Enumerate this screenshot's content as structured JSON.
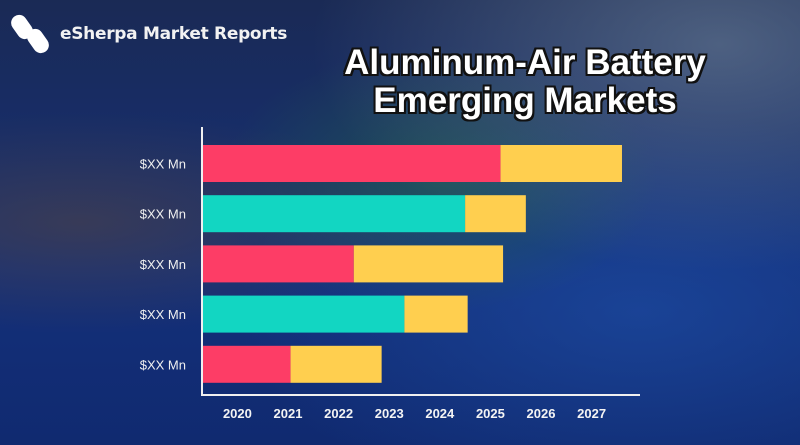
{
  "brand": {
    "name": "eSherpa Market Reports",
    "icon": "esherpa-logo-icon"
  },
  "title": {
    "line1": "Aluminum-Air Battery",
    "line2": "Emerging Markets"
  },
  "chart_data": {
    "type": "bar",
    "orientation": "horizontal-stacked",
    "title": "Aluminum-Air Battery Emerging Markets",
    "xlabel": "",
    "ylabel": "",
    "x_ticks": [
      "2020",
      "2021",
      "2022",
      "2023",
      "2024",
      "2025",
      "2026",
      "2027"
    ],
    "xlim": [
      2019.3,
      2028
    ],
    "categories": [
      "$XX Mn",
      "$XX Mn",
      "$XX Mn",
      "$XX Mn",
      "$XX Mn"
    ],
    "bars": [
      {
        "label": "$XX Mn",
        "start": 2019.3,
        "mid": 2025.2,
        "end": 2027.6,
        "base_color": "#fd3d66"
      },
      {
        "label": "$XX Mn",
        "start": 2019.3,
        "mid": 2024.5,
        "end": 2025.7,
        "base_color": "#12d6c2"
      },
      {
        "label": "$XX Mn",
        "start": 2019.3,
        "mid": 2022.3,
        "end": 2025.25,
        "base_color": "#fd3d66"
      },
      {
        "label": "$XX Mn",
        "start": 2019.3,
        "mid": 2023.3,
        "end": 2024.55,
        "base_color": "#12d6c2"
      },
      {
        "label": "$XX Mn",
        "start": 2019.3,
        "mid": 2021.05,
        "end": 2022.85,
        "base_color": "#fd3d66"
      }
    ],
    "extension_color": "#ffcf4f",
    "grid": false,
    "legend": "none"
  }
}
